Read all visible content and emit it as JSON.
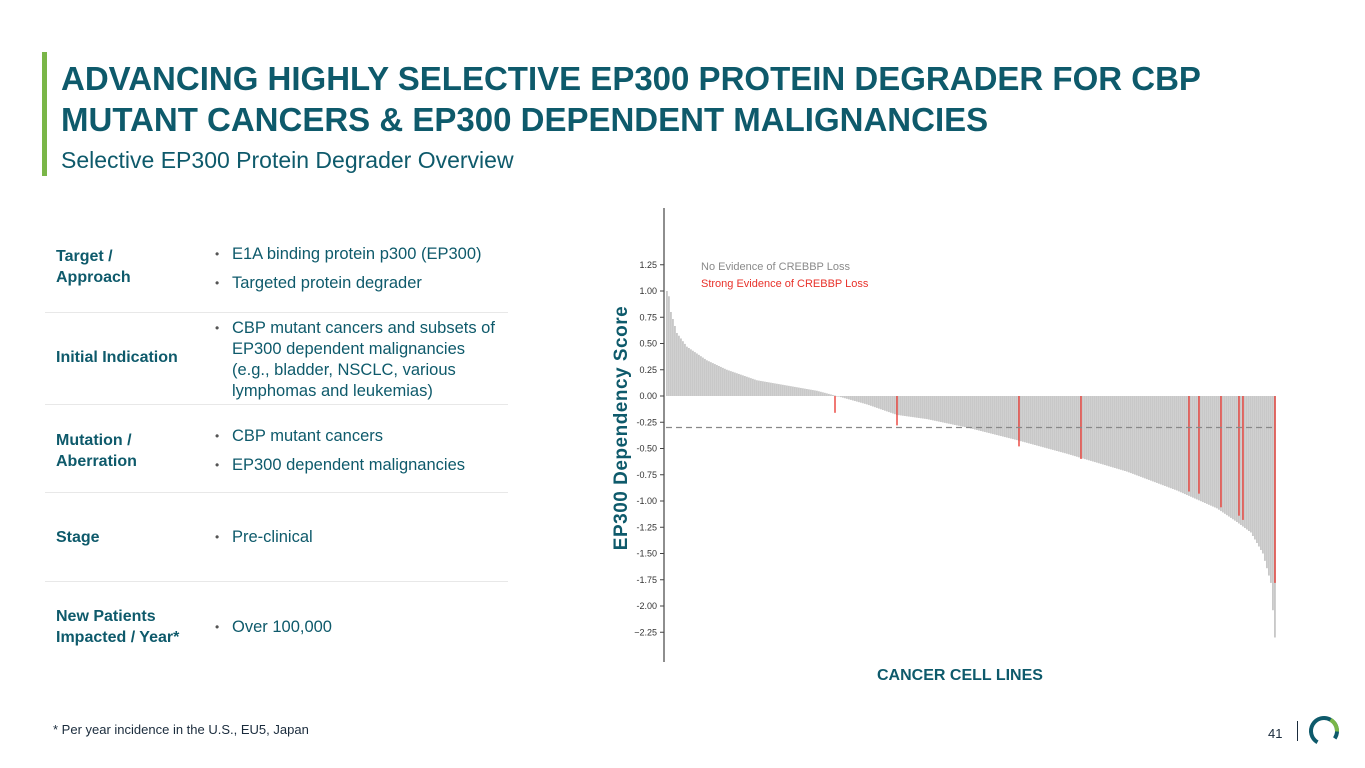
{
  "header": {
    "title_line1": "ADVANCING HIGHLY SELECTIVE EP300 PROTEIN DEGRADER FOR CBP",
    "title_line2": "MUTANT CANCERS & EP300 DEPENDENT MALIGNANCIES",
    "subtitle": "Selective EP300 Protein Degrader Overview"
  },
  "table": {
    "rows": [
      {
        "label_line1": "Target /",
        "label_line2": "Approach",
        "bullets": [
          "E1A binding protein p300 (EP300)",
          "Targeted protein degrader"
        ]
      },
      {
        "label_line1": "Initial Indication",
        "label_line2": "",
        "bullets": [
          "CBP mutant cancers and subsets of EP300 dependent malignancies (e.g., bladder, NSCLC, various lymphomas and leukemias)"
        ]
      },
      {
        "label_line1": "Mutation /",
        "label_line2": "Aberration",
        "bullets": [
          "CBP mutant cancers",
          "EP300 dependent malignancies"
        ]
      },
      {
        "label_line1": "Stage",
        "label_line2": "",
        "bullets": [
          "Pre-clinical"
        ]
      },
      {
        "label_line1": "New Patients",
        "label_line2": "Impacted / Year*",
        "bullets": [
          "Over 100,000"
        ]
      }
    ]
  },
  "footnote": "* Per year incidence in the U.S., EU5, Japan",
  "page_number": "41",
  "colors": {
    "brand": "#0e5a6b",
    "accent": "#7ab648",
    "no_evidence": "#c8c8c8",
    "strong_evidence": "#e8312a"
  },
  "chart_data": {
    "type": "bar",
    "xlabel": "CANCER CELL LINES",
    "ylabel": "EP300 Dependency Score",
    "ylim": [
      -2.35,
      1.8
    ],
    "yticks": [
      "1.25",
      "1.00",
      "0.75",
      "0.50",
      "0.25",
      "0.00",
      "-0.25",
      "-0.50",
      "-0.75",
      "-1.00",
      "-1.25",
      "-1.50",
      "-1.75",
      "-2.00",
      "−2.25"
    ],
    "ytick_values": [
      1.25,
      1.0,
      0.75,
      0.5,
      0.25,
      0.0,
      -0.25,
      -0.5,
      -0.75,
      -1.0,
      -1.25,
      -1.5,
      -1.75,
      -2.0,
      -2.25
    ],
    "legend": [
      {
        "name": "No Evidence of CREBBP Loss",
        "color": "#8a8a8a"
      },
      {
        "name": "Strong Evidence of CREBBP Loss",
        "color": "#e8312a"
      }
    ],
    "legend_position": "top-left",
    "sorted_descending": true,
    "num_cell_lines": 305,
    "value_profile": [
      {
        "rank": 0,
        "value": 1.0
      },
      {
        "rank": 1,
        "value": 0.95
      },
      {
        "rank": 2,
        "value": 0.8
      },
      {
        "rank": 5,
        "value": 0.6
      },
      {
        "rank": 10,
        "value": 0.47
      },
      {
        "rank": 20,
        "value": 0.34
      },
      {
        "rank": 30,
        "value": 0.25
      },
      {
        "rank": 45,
        "value": 0.15
      },
      {
        "rank": 60,
        "value": 0.1
      },
      {
        "rank": 75,
        "value": 0.05
      },
      {
        "rank": 85,
        "value": 0.0
      },
      {
        "rank": 100,
        "value": -0.08
      },
      {
        "rank": 115,
        "value": -0.18
      },
      {
        "rank": 130,
        "value": -0.22
      },
      {
        "rank": 150,
        "value": -0.3
      },
      {
        "rank": 175,
        "value": -0.42
      },
      {
        "rank": 200,
        "value": -0.55
      },
      {
        "rank": 230,
        "value": -0.72
      },
      {
        "rank": 255,
        "value": -0.9
      },
      {
        "rank": 275,
        "value": -1.07
      },
      {
        "rank": 285,
        "value": -1.2
      },
      {
        "rank": 292,
        "value": -1.3
      },
      {
        "rank": 298,
        "value": -1.5
      },
      {
        "rank": 302,
        "value": -1.78
      },
      {
        "rank": 304,
        "value": -2.3
      }
    ],
    "strong_evidence_lines": [
      {
        "rank": 84,
        "value": -0.16
      },
      {
        "rank": 115,
        "value": -0.28
      },
      {
        "rank": 176,
        "value": -0.48
      },
      {
        "rank": 207,
        "value": -0.6
      },
      {
        "rank": 261,
        "value": -0.91
      },
      {
        "rank": 266,
        "value": -0.93
      },
      {
        "rank": 277,
        "value": -1.06
      },
      {
        "rank": 286,
        "value": -1.14
      },
      {
        "rank": 288,
        "value": -1.18
      },
      {
        "rank": 304,
        "value": -1.78
      }
    ],
    "reference_line": {
      "value": -0.3,
      "style": "dashed"
    }
  }
}
